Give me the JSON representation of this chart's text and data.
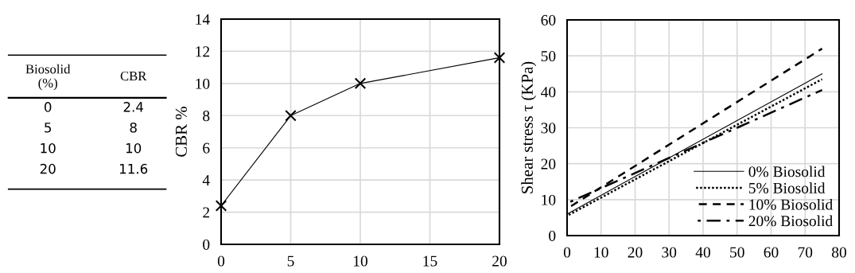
{
  "chart_data": [
    {
      "type": "other",
      "categories": [
        "Biosolid\n(%)",
        "CBR"
      ],
      "cell_labels": [
        [
          "0",
          "2.4"
        ],
        [
          "5",
          "8"
        ],
        [
          "10",
          "10"
        ],
        [
          "20",
          "11.6"
        ]
      ]
    },
    {
      "type": "line",
      "ylabel": "CBR %",
      "x": [
        0,
        5,
        10,
        20
      ],
      "marker": "cross",
      "grid": true,
      "series": [
        {
          "color": "#000000",
          "values": [
            2.4,
            8,
            10,
            11.6
          ]
        }
      ],
      "xlim": [
        0,
        20
      ],
      "xticks": [
        0,
        5,
        10,
        15,
        20
      ],
      "ylim": [
        0,
        14
      ],
      "yticks": [
        0,
        2,
        4,
        6,
        8,
        10,
        12,
        14
      ]
    },
    {
      "type": "line",
      "ylabel": "Shear stress τ (KPa)",
      "grid": true,
      "legend": "bottom right",
      "x": [
        0,
        75
      ],
      "series": [
        {
          "name": "0% Biosolid",
          "color": "#000000",
          "line_style": "solid",
          "values": [
            6,
            45
          ]
        },
        {
          "name": "5% Biosolid",
          "color": "#000000",
          "line_style": "dotted",
          "values": [
            5.5,
            43.5
          ]
        },
        {
          "name": "10% Biosolid",
          "color": "#000000",
          "line_style": "dashed",
          "values": [
            7.5,
            52
          ]
        },
        {
          "name": "20% Biosolid",
          "color": "#000000",
          "line_style": "dashdot",
          "values": [
            9,
            40.5
          ]
        }
      ],
      "xlim": [
        0,
        80
      ],
      "xticks": [
        0,
        10,
        20,
        30,
        40,
        50,
        60,
        70,
        80
      ],
      "ylim": [
        0,
        60
      ],
      "yticks": [
        0,
        10,
        20,
        30,
        40,
        50,
        60
      ]
    }
  ]
}
